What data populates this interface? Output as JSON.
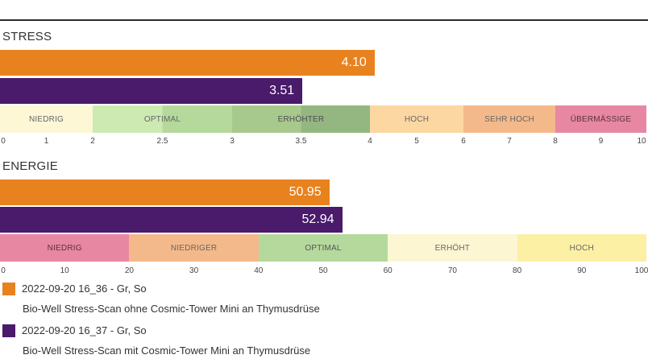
{
  "chart_data": [
    {
      "type": "bar",
      "title": "STRESS",
      "orientation": "horizontal",
      "xlim": [
        0,
        10
      ],
      "series": [
        {
          "name": "2022-09-20 16_36 - Gr, So",
          "value": 4.1,
          "label": "4.10",
          "color": "#e8821f"
        },
        {
          "name": "2022-09-20 16_37 - Gr, So",
          "value": 3.51,
          "label": "3.51",
          "color": "#4a1a6b"
        }
      ],
      "zones": [
        {
          "label": "NIEDRIG",
          "from": 0,
          "to": 2,
          "color": "#fdf7d6",
          "text_color": "#666"
        },
        {
          "label": "OPTIMAL",
          "from": 2,
          "to": 3,
          "color": "#cdeab2",
          "color2": "#b5d99c",
          "split": 2.5,
          "text_color": "#666"
        },
        {
          "label": "ERHÖHTER",
          "from": 3,
          "to": 4,
          "color": "#a8c98e",
          "color2": "#94b781",
          "split": 3.5,
          "text_color": "#4d4d4d"
        },
        {
          "label": "HOCH",
          "from": 4,
          "to": 6,
          "color": "#fcd7a2",
          "text_color": "#666"
        },
        {
          "label": "SEHR HOCH",
          "from": 6,
          "to": 8,
          "color": "#f4b98a",
          "text_color": "#666"
        },
        {
          "label": "ÜBERMÄßIGE",
          "from": 8,
          "to": 10,
          "color": "#e887a2",
          "text_color": "#5a3340"
        }
      ],
      "ticks": [
        "0",
        "1",
        "2",
        "2.5",
        "3",
        "3.5",
        "4",
        "5",
        "6",
        "7",
        "8",
        "9",
        "10"
      ]
    },
    {
      "type": "bar",
      "title": "ENERGIE",
      "orientation": "horizontal",
      "xlim": [
        0,
        100
      ],
      "series": [
        {
          "name": "2022-09-20 16_36 - Gr, So",
          "value": 50.95,
          "label": "50.95",
          "color": "#e8821f"
        },
        {
          "name": "2022-09-20 16_37 - Gr, So",
          "value": 52.94,
          "label": "52.94",
          "color": "#4a1a6b"
        }
      ],
      "zones": [
        {
          "label": "NIEDRIG",
          "from": 0,
          "to": 20,
          "color": "#e887a2",
          "text_color": "#5a3340"
        },
        {
          "label": "NIEDRIGER",
          "from": 20,
          "to": 40,
          "color": "#f4b98a",
          "text_color": "#666"
        },
        {
          "label": "OPTIMAL",
          "from": 40,
          "to": 60,
          "color": "#b5d99c",
          "text_color": "#555"
        },
        {
          "label": "ERHÖHT",
          "from": 60,
          "to": 80,
          "color": "#fdf6d3",
          "text_color": "#666"
        },
        {
          "label": "HOCH",
          "from": 80,
          "to": 100,
          "color": "#fbf0a3",
          "text_color": "#666"
        }
      ],
      "ticks": [
        "0",
        "10",
        "20",
        "30",
        "40",
        "50",
        "60",
        "70",
        "80",
        "90",
        "100"
      ]
    }
  ],
  "legend": [
    {
      "label": "2022-09-20 16_36 - Gr, So",
      "color": "#e8821f",
      "description": "Bio-Well Stress-Scan ohne Cosmic-Tower Mini an Thymusdrüse"
    },
    {
      "label": "2022-09-20 16_37 - Gr, So",
      "color": "#4a1a6b",
      "description": "Bio-Well Stress-Scan mit Cosmic-Tower Mini an Thymusdrüse"
    }
  ]
}
